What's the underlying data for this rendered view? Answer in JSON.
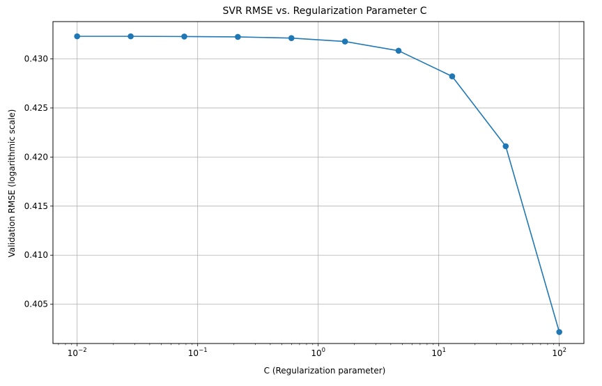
{
  "chart_data": {
    "type": "line",
    "title": "SVR RMSE vs. Regularization Parameter C",
    "xlabel": "C (Regularization parameter)",
    "ylabel": "Validation RMSE (logarithmic scale)",
    "x_scale": "log",
    "y_scale": "linear",
    "xlim": [
      0.0063,
      160
    ],
    "ylim": [
      0.401,
      0.4338
    ],
    "grid": true,
    "x_ticks": [
      {
        "value": 0.01,
        "base": "10",
        "exp": "−2"
      },
      {
        "value": 0.1,
        "base": "10",
        "exp": "−1"
      },
      {
        "value": 1,
        "base": "10",
        "exp": "0"
      },
      {
        "value": 10,
        "base": "10",
        "exp": "1"
      },
      {
        "value": 100,
        "base": "10",
        "exp": "2"
      }
    ],
    "y_ticks": [
      {
        "value": 0.405,
        "label": "0.405"
      },
      {
        "value": 0.41,
        "label": "0.410"
      },
      {
        "value": 0.415,
        "label": "0.415"
      },
      {
        "value": 0.42,
        "label": "0.420"
      },
      {
        "value": 0.425,
        "label": "0.425"
      },
      {
        "value": 0.43,
        "label": "0.430"
      }
    ],
    "series": [
      {
        "color": "#1f77b4",
        "marker": "circle",
        "x": [
          0.01,
          0.02783,
          0.07743,
          0.2154,
          0.5995,
          1.668,
          4.642,
          12.92,
          35.94,
          100
        ],
        "y": [
          0.4323,
          0.4323,
          0.43228,
          0.43224,
          0.43212,
          0.43177,
          0.43083,
          0.42822,
          0.4211,
          0.40217
        ]
      }
    ]
  }
}
